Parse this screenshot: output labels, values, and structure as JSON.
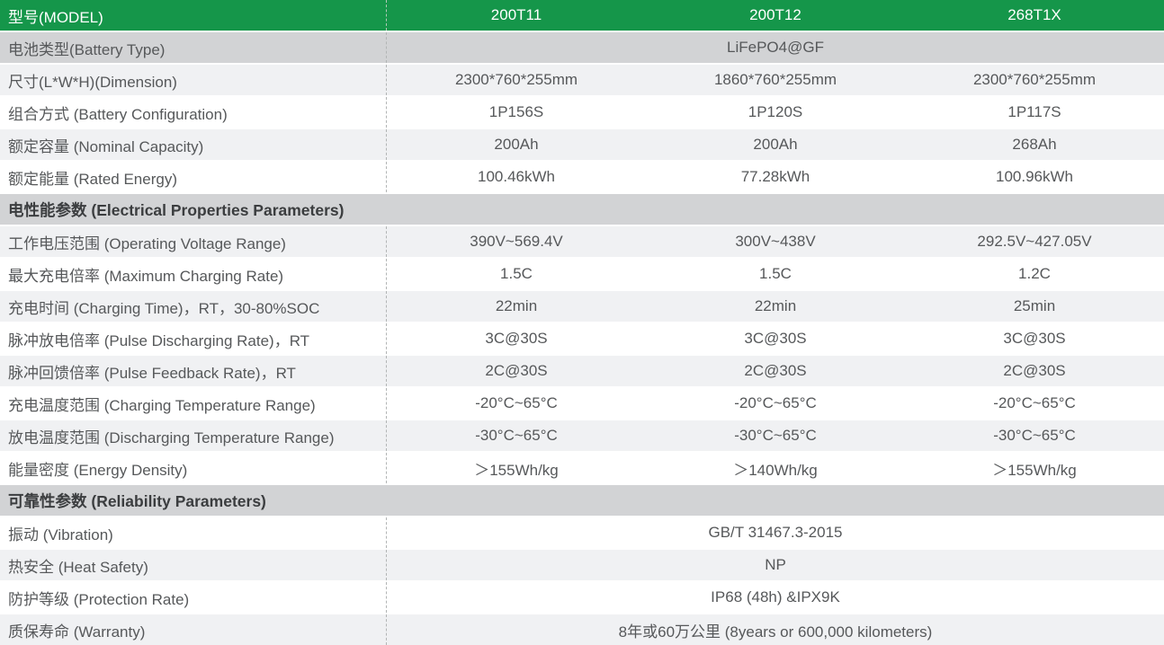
{
  "colors": {
    "header_green": "#15964a",
    "section_band_gray": "#d2d3d5",
    "stripe_light_gray": "#f0f1f3",
    "row_white": "#ffffff",
    "label_text_gray": "#56585a",
    "section_text_dark": "#3b3d3f",
    "header_text_white": "#ffffff",
    "dashed_divider_gray": "#b2b5b5"
  },
  "table": {
    "header": {
      "label": "型号(MODEL)",
      "models": [
        "200T11",
        "200T12",
        "268T1X"
      ]
    },
    "rows": [
      {
        "type": "merged",
        "label": "电池类型(Battery Type)",
        "value": "LiFePO4@GF"
      },
      {
        "type": "values",
        "label": "尺寸(L*W*H)(Dimension)",
        "values": [
          "2300*760*255mm",
          "1860*760*255mm",
          "2300*760*255mm"
        ]
      },
      {
        "type": "values",
        "label": "组合方式 (Battery Configuration)",
        "values": [
          "1P156S",
          "1P120S",
          "1P117S"
        ]
      },
      {
        "type": "values",
        "label": "额定容量 (Nominal Capacity)",
        "values": [
          "200Ah",
          "200Ah",
          "268Ah"
        ]
      },
      {
        "type": "values",
        "label": "额定能量 (Rated Energy)",
        "values": [
          "100.46kWh",
          "77.28kWh",
          "100.96kWh"
        ]
      },
      {
        "type": "section",
        "label": "电性能参数 (Electrical Properties Parameters)"
      },
      {
        "type": "values",
        "label": "工作电压范围 (Operating Voltage Range)",
        "values": [
          "390V~569.4V",
          "300V~438V",
          "292.5V~427.05V"
        ]
      },
      {
        "type": "values",
        "label": "最大充电倍率 (Maximum Charging Rate)",
        "values": [
          "1.5C",
          "1.5C",
          "1.2C"
        ]
      },
      {
        "type": "values",
        "label": "充电时间 (Charging Time)，RT，30-80%SOC",
        "values": [
          "22min",
          "22min",
          "25min"
        ]
      },
      {
        "type": "values",
        "label": "脉冲放电倍率 (Pulse Discharging Rate)，RT",
        "values": [
          "3C@30S",
          "3C@30S",
          "3C@30S"
        ]
      },
      {
        "type": "values",
        "label": "脉冲回馈倍率 (Pulse Feedback Rate)，RT",
        "values": [
          "2C@30S",
          "2C@30S",
          "2C@30S"
        ]
      },
      {
        "type": "values",
        "label": "充电温度范围 (Charging Temperature Range)",
        "values": [
          "-20°C~65°C",
          "-20°C~65°C",
          "-20°C~65°C"
        ]
      },
      {
        "type": "values",
        "label": "放电温度范围 (Discharging Temperature Range)",
        "values": [
          "-30°C~65°C",
          "-30°C~65°C",
          "-30°C~65°C"
        ]
      },
      {
        "type": "values",
        "label": "能量密度 (Energy Density)",
        "values": [
          "＞155Wh/kg",
          "＞140Wh/kg",
          "＞155Wh/kg"
        ]
      },
      {
        "type": "section",
        "label": "可靠性参数 (Reliability Parameters)"
      },
      {
        "type": "merged",
        "label": "振动 (Vibration)",
        "value": "GB/T 31467.3-2015"
      },
      {
        "type": "merged",
        "label": "热安全 (Heat Safety)",
        "value": "NP"
      },
      {
        "type": "merged",
        "label": "防护等级 (Protection Rate)",
        "value": "IP68 (48h) &IPX9K"
      },
      {
        "type": "merged",
        "label": "质保寿命 (Warranty)",
        "value": "8年或60万公里 (8years or 600,000 kilometers)"
      }
    ]
  }
}
